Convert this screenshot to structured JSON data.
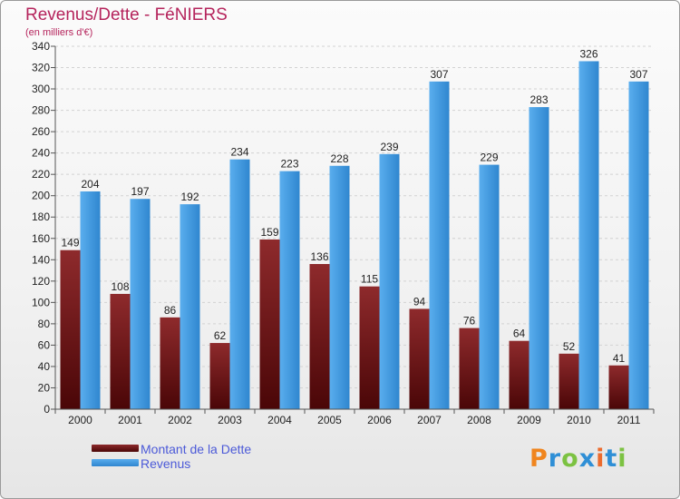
{
  "chart_data": {
    "type": "bar",
    "title": "Revenus/Dette - FéNIERS",
    "subtitle": "(en milliers d'€)",
    "xlabel": "",
    "ylabel": "",
    "ylim": [
      0,
      340
    ],
    "yticks": [
      0,
      20,
      40,
      60,
      80,
      100,
      120,
      140,
      160,
      180,
      200,
      220,
      240,
      260,
      280,
      300,
      320,
      340
    ],
    "grid": true,
    "categories": [
      "2000",
      "2001",
      "2002",
      "2003",
      "2004",
      "2005",
      "2006",
      "2007",
      "2008",
      "2009",
      "2010",
      "2011"
    ],
    "series": [
      {
        "name": "Montant de la Dette",
        "color": "#7a1618",
        "values": [
          149,
          108,
          86,
          62,
          159,
          136,
          115,
          94,
          76,
          64,
          52,
          41
        ]
      },
      {
        "name": "Revenus",
        "color": "#3f9de3",
        "values": [
          204,
          197,
          192,
          234,
          223,
          228,
          239,
          307,
          229,
          283,
          326,
          307
        ]
      }
    ],
    "legend": {
      "position": "bottom-left"
    }
  },
  "logo": {
    "text": "Proxiti",
    "colors": [
      "#f0851e",
      "#2f8fd6",
      "#7cc242",
      "#2f8fd6",
      "#ec6b2d",
      "#2f8fd6",
      "#7cc242"
    ]
  }
}
